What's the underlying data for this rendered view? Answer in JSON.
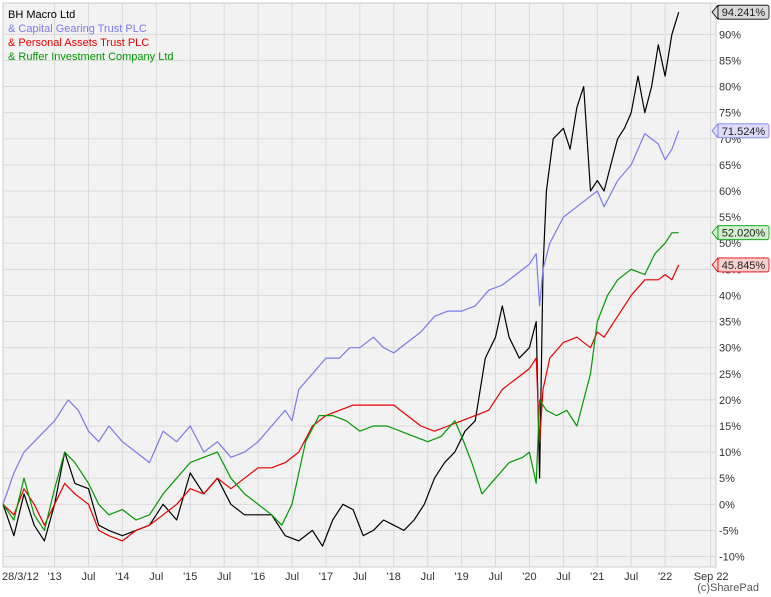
{
  "credit": "(c)SharePad",
  "chart_data": {
    "type": "line",
    "title": "",
    "xlabel": "",
    "ylabel": "",
    "ylim": [
      -12,
      96
    ],
    "yticks": [
      -10,
      -5,
      0,
      5,
      10,
      15,
      20,
      25,
      30,
      35,
      40,
      45,
      50,
      55,
      60,
      65,
      70,
      75,
      80,
      85,
      90
    ],
    "ytick_labels": [
      "-10%",
      "-5%",
      "0%",
      "5%",
      "10%",
      "15%",
      "20%",
      "25%",
      "30%",
      "35%",
      "40%",
      "45%",
      "50%",
      "55%",
      "60%",
      "65%",
      "70%",
      "75%",
      "80%",
      "85%",
      "90%"
    ],
    "xlim": [
      2012.24,
      2022.75
    ],
    "xticks": [
      2012.24,
      2013.0,
      2013.5,
      2014.0,
      2014.5,
      2015.0,
      2015.5,
      2016.0,
      2016.5,
      2017.0,
      2017.5,
      2018.0,
      2018.5,
      2019.0,
      2019.5,
      2020.0,
      2020.5,
      2021.0,
      2021.5,
      2022.0,
      2022.67
    ],
    "xtick_labels": [
      "28/3/12",
      "'13",
      "Jul",
      "'14",
      "Jul",
      "'15",
      "Jul",
      "'16",
      "Jul",
      "'17",
      "Jul",
      "'18",
      "Jul",
      "'19",
      "Jul",
      "'20",
      "Jul",
      "'21",
      "Jul",
      "'22",
      "Sep 22"
    ],
    "grid": true,
    "legend_position": "top-left",
    "series": [
      {
        "name": "BH Macro Ltd",
        "legend_label": "BH Macro Ltd",
        "end_label": "94.241%",
        "color": "#000000",
        "label_bg": "#d9d9d9",
        "x": [
          2012.24,
          2012.4,
          2012.55,
          2012.7,
          2012.85,
          2013.0,
          2013.15,
          2013.3,
          2013.5,
          2013.65,
          2013.8,
          2014.0,
          2014.2,
          2014.4,
          2014.6,
          2014.8,
          2015.0,
          2015.2,
          2015.4,
          2015.6,
          2015.8,
          2016.0,
          2016.2,
          2016.4,
          2016.6,
          2016.8,
          2016.95,
          2017.1,
          2017.25,
          2017.4,
          2017.55,
          2017.7,
          2017.85,
          2018.0,
          2018.15,
          2018.3,
          2018.45,
          2018.6,
          2018.75,
          2018.9,
          2019.05,
          2019.2,
          2019.35,
          2019.5,
          2019.6,
          2019.7,
          2019.85,
          2020.0,
          2020.1,
          2020.15,
          2020.2,
          2020.25,
          2020.35,
          2020.5,
          2020.6,
          2020.7,
          2020.8,
          2020.9,
          2021.0,
          2021.1,
          2021.2,
          2021.3,
          2021.4,
          2021.5,
          2021.6,
          2021.7,
          2021.8,
          2021.9,
          2022.0,
          2022.1,
          2022.2
        ],
        "values": [
          0,
          -6,
          2,
          -4,
          -7,
          0,
          10,
          4,
          3,
          -4,
          -5,
          -6,
          -5,
          -4,
          0,
          -3,
          6,
          2,
          5,
          0,
          -2,
          -2,
          -2,
          -6,
          -7,
          -5,
          -8,
          -3,
          0,
          -1,
          -6,
          -5,
          -3,
          -4,
          -5,
          -3,
          0,
          5,
          8,
          10,
          14,
          16,
          28,
          32,
          38,
          32,
          28,
          30,
          35,
          5,
          45,
          60,
          70,
          72,
          68,
          76,
          80,
          60,
          62,
          60,
          65,
          70,
          72,
          75,
          82,
          75,
          80,
          88,
          82,
          90,
          94.241
        ]
      },
      {
        "name": "& Capital Gearing Trust PLC",
        "legend_label": "& Capital Gearing Trust PLC",
        "end_label": "71.524%",
        "color": "#7b7bea",
        "label_bg": "#dcdcf8",
        "x": [
          2012.24,
          2012.4,
          2012.55,
          2012.7,
          2012.85,
          2013.0,
          2013.2,
          2013.35,
          2013.5,
          2013.65,
          2013.8,
          2014.0,
          2014.2,
          2014.4,
          2014.6,
          2014.8,
          2015.0,
          2015.2,
          2015.4,
          2015.6,
          2015.8,
          2016.0,
          2016.2,
          2016.4,
          2016.5,
          2016.6,
          2016.8,
          2017.0,
          2017.2,
          2017.35,
          2017.5,
          2017.7,
          2017.85,
          2018.0,
          2018.2,
          2018.4,
          2018.6,
          2018.8,
          2019.0,
          2019.2,
          2019.4,
          2019.6,
          2019.8,
          2020.0,
          2020.1,
          2020.15,
          2020.2,
          2020.3,
          2020.5,
          2020.7,
          2020.9,
          2021.0,
          2021.1,
          2021.3,
          2021.5,
          2021.7,
          2021.9,
          2022.0,
          2022.1,
          2022.2
        ],
        "values": [
          0,
          6,
          10,
          12,
          14,
          16,
          20,
          18,
          14,
          12,
          15,
          12,
          10,
          8,
          14,
          12,
          15,
          10,
          12,
          9,
          10,
          12,
          15,
          18,
          16,
          22,
          25,
          28,
          28,
          30,
          30,
          32,
          30,
          29,
          31,
          33,
          36,
          37,
          37,
          38,
          41,
          42,
          44,
          46,
          48,
          38,
          45,
          50,
          55,
          57,
          59,
          60,
          57,
          62,
          65,
          71,
          69,
          66,
          68,
          71.524
        ]
      },
      {
        "name": "& Personal Assets Trust PLC",
        "legend_label": "& Personal Assets Trust PLC",
        "end_label": "45.845%",
        "color": "#e60000",
        "label_bg": "#f8d0d0",
        "x": [
          2012.24,
          2012.4,
          2012.55,
          2012.7,
          2012.85,
          2013.0,
          2013.15,
          2013.3,
          2013.5,
          2013.65,
          2013.8,
          2014.0,
          2014.2,
          2014.4,
          2014.6,
          2014.8,
          2015.0,
          2015.2,
          2015.4,
          2015.6,
          2015.8,
          2016.0,
          2016.2,
          2016.4,
          2016.6,
          2016.8,
          2017.0,
          2017.2,
          2017.4,
          2017.6,
          2017.8,
          2018.0,
          2018.2,
          2018.4,
          2018.6,
          2018.8,
          2019.0,
          2019.2,
          2019.4,
          2019.6,
          2019.8,
          2020.0,
          2020.1,
          2020.15,
          2020.2,
          2020.3,
          2020.5,
          2020.7,
          2020.9,
          2021.0,
          2021.1,
          2021.3,
          2021.5,
          2021.7,
          2021.9,
          2022.0,
          2022.1,
          2022.2
        ],
        "values": [
          0,
          -2,
          3,
          0,
          -4,
          0,
          4,
          2,
          0,
          -5,
          -6,
          -7,
          -5,
          -4,
          -2,
          0,
          3,
          2,
          5,
          3,
          5,
          7,
          7,
          8,
          10,
          15,
          17,
          18,
          19,
          19,
          19,
          19,
          17,
          15,
          14,
          15,
          16,
          17,
          18,
          22,
          24,
          26,
          28,
          12,
          22,
          28,
          31,
          32,
          30,
          33,
          32,
          36,
          40,
          43,
          43,
          44,
          43,
          45.845
        ]
      },
      {
        "name": "& Ruffer Investment Company Ltd",
        "legend_label": "& Ruffer Investment Company Ltd",
        "end_label": "52.020%",
        "color": "#009900",
        "label_bg": "#d0f0d0",
        "x": [
          2012.24,
          2012.4,
          2012.55,
          2012.7,
          2012.85,
          2013.0,
          2013.15,
          2013.3,
          2013.5,
          2013.65,
          2013.8,
          2014.0,
          2014.2,
          2014.4,
          2014.6,
          2014.8,
          2015.0,
          2015.2,
          2015.4,
          2015.6,
          2015.8,
          2016.0,
          2016.2,
          2016.35,
          2016.5,
          2016.7,
          2016.9,
          2017.1,
          2017.3,
          2017.5,
          2017.7,
          2017.9,
          2018.1,
          2018.3,
          2018.5,
          2018.7,
          2018.9,
          2019.0,
          2019.15,
          2019.3,
          2019.5,
          2019.7,
          2019.9,
          2020.0,
          2020.1,
          2020.15,
          2020.25,
          2020.4,
          2020.55,
          2020.7,
          2020.8,
          2020.9,
          2021.0,
          2021.15,
          2021.3,
          2021.5,
          2021.7,
          2021.85,
          2022.0,
          2022.1,
          2022.2
        ],
        "values": [
          0,
          -3,
          5,
          -2,
          -5,
          3,
          10,
          8,
          4,
          0,
          -2,
          -1,
          -3,
          -2,
          2,
          5,
          8,
          9,
          10,
          5,
          2,
          0,
          -2,
          -4,
          0,
          12,
          17,
          17,
          16,
          14,
          15,
          15,
          14,
          13,
          12,
          13,
          16,
          13,
          8,
          2,
          5,
          8,
          9,
          10,
          4,
          20,
          18,
          17,
          18,
          15,
          20,
          25,
          35,
          40,
          43,
          45,
          44,
          48,
          50,
          52,
          52.02
        ]
      }
    ]
  }
}
